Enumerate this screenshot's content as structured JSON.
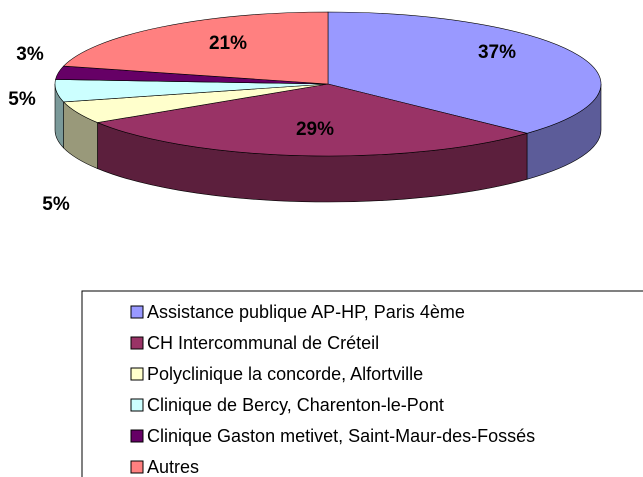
{
  "chart_data": {
    "type": "pie3d",
    "categories": [
      "Assistance publique AP-HP, Paris 4ème",
      "CH Intercommunal de Créteil",
      "Polyclinique la concorde, Alfortville",
      "Clinique de Bercy, Charenton-le-Pont",
      "Clinique Gaston metivet, Saint-Maur-des-Fossés",
      "Autres"
    ],
    "values": [
      37,
      29,
      5,
      5,
      3,
      21
    ],
    "value_labels": [
      "37%",
      "29%",
      "5%",
      "5%",
      "3%",
      "21%"
    ],
    "colors": [
      "#9999ff",
      "#993366",
      "#ffffcc",
      "#ccffff",
      "#660066",
      "#ff8080"
    ]
  }
}
